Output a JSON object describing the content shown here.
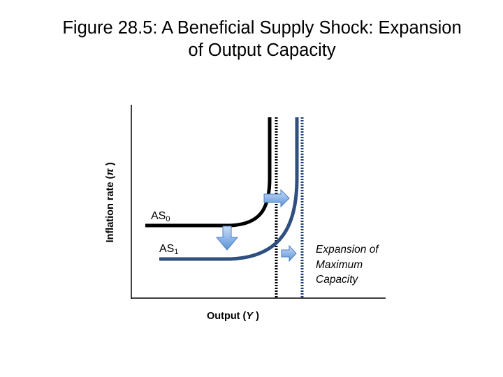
{
  "title": {
    "line1": "Figure 28.5: A Beneficial Supply Shock: Expansion",
    "line2": "of Output Capacity"
  },
  "axes": {
    "y_label_text": "Inflation rate (",
    "y_label_symbol": "π",
    "y_label_close": " )",
    "x_label_text": "Output (",
    "x_label_symbol": "Y",
    "x_label_close": " )"
  },
  "curves": {
    "as0": {
      "name": "AS",
      "sub": "0",
      "color": "#000000"
    },
    "as1": {
      "name": "AS",
      "sub": "1",
      "color": "#2f4f7f"
    }
  },
  "annotation": {
    "line1": "Expansion of",
    "line2": "Maximum",
    "line3": "Capacity"
  },
  "colors": {
    "arrow_fill": "#8ab4e8",
    "arrow_stroke": "#4a7fc0",
    "capacity_line_old": "#000000",
    "capacity_line_new": "#1f3f6f"
  }
}
